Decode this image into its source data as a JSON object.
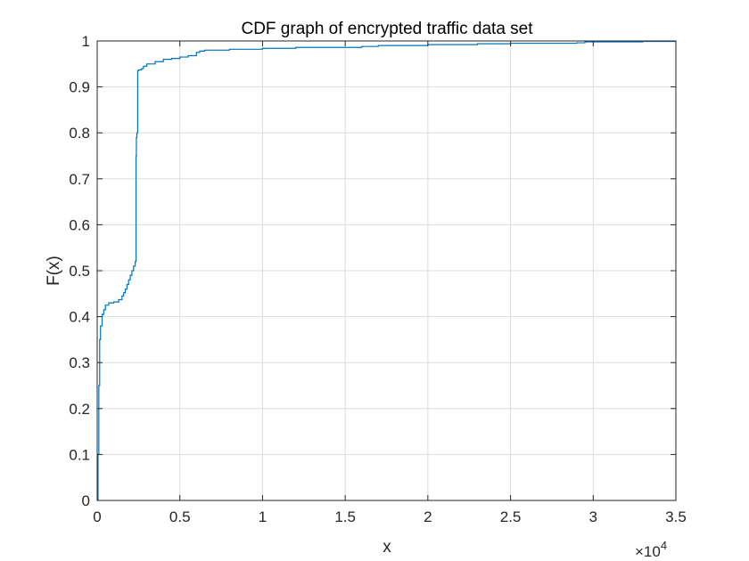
{
  "chart_data": {
    "type": "line",
    "title": "CDF graph of encrypted traffic data set",
    "xlabel": "x",
    "ylabel": "F(x)",
    "x_multiplier_base": "×10",
    "x_multiplier_exp": "4",
    "xlim": [
      0,
      3.5
    ],
    "ylim": [
      0,
      1
    ],
    "xticks": [
      0,
      0.5,
      1,
      1.5,
      2,
      2.5,
      3,
      3.5
    ],
    "xtick_labels": [
      "0",
      "0.5",
      "1",
      "1.5",
      "2",
      "2.5",
      "3",
      "3.5"
    ],
    "yticks": [
      0,
      0.1,
      0.2,
      0.3,
      0.4,
      0.5,
      0.6,
      0.7,
      0.8,
      0.9,
      1
    ],
    "ytick_labels": [
      "0",
      "0.1",
      "0.2",
      "0.3",
      "0.4",
      "0.5",
      "0.6",
      "0.7",
      "0.8",
      "0.9",
      "1"
    ],
    "grid": true,
    "series": [
      {
        "color": "#0072bd",
        "x": [
          0,
          0.005,
          0.01,
          0.015,
          0.02,
          0.03,
          0.04,
          0.05,
          0.07,
          0.1,
          0.13,
          0.15,
          0.16,
          0.17,
          0.18,
          0.19,
          0.2,
          0.21,
          0.22,
          0.23,
          0.235,
          0.237,
          0.24,
          0.245,
          0.25,
          0.265,
          0.27,
          0.28,
          0.3,
          0.35,
          0.4,
          0.45,
          0.5,
          0.55,
          0.6,
          0.62,
          0.65,
          0.8,
          1.0,
          1.2,
          1.6,
          1.7,
          2.0,
          2.3,
          2.5,
          2.9,
          2.95,
          3.3,
          3.5
        ],
        "y": [
          0,
          0.1,
          0.25,
          0.35,
          0.38,
          0.405,
          0.415,
          0.425,
          0.43,
          0.432,
          0.437,
          0.445,
          0.452,
          0.46,
          0.47,
          0.48,
          0.49,
          0.5,
          0.51,
          0.52,
          0.75,
          0.79,
          0.8,
          0.935,
          0.937,
          0.938,
          0.94,
          0.945,
          0.95,
          0.955,
          0.96,
          0.962,
          0.965,
          0.968,
          0.975,
          0.978,
          0.98,
          0.982,
          0.984,
          0.986,
          0.988,
          0.99,
          0.992,
          0.994,
          0.995,
          0.996,
          0.998,
          0.999,
          1.0
        ]
      }
    ]
  }
}
